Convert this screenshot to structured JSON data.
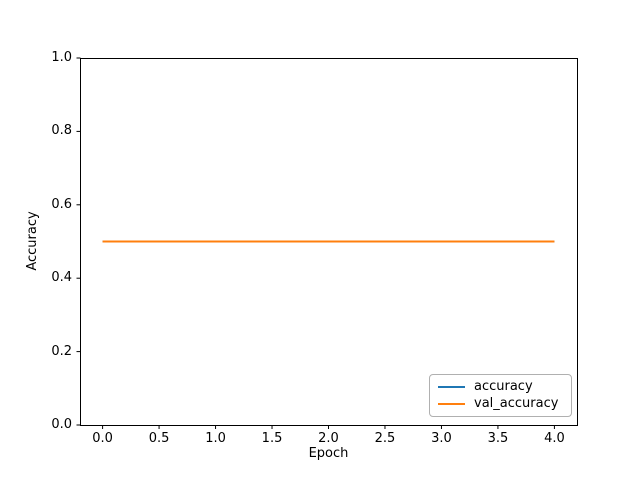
{
  "figure": {
    "background": "#ffffff",
    "text_color": "#000000",
    "spine_color": "#000000"
  },
  "chart_data": {
    "type": "line",
    "title": "",
    "xlabel": "Epoch",
    "ylabel": "Accuracy",
    "x": [
      0,
      1,
      2,
      3,
      4
    ],
    "series": [
      {
        "name": "accuracy",
        "color": "#1f77b4",
        "values": [
          0.5,
          0.5,
          0.5,
          0.5,
          0.5
        ]
      },
      {
        "name": "val_accuracy",
        "color": "#ff7f0e",
        "values": [
          0.5,
          0.5,
          0.5,
          0.5,
          0.5
        ]
      }
    ],
    "xlim": [
      -0.2,
      4.2
    ],
    "ylim": [
      0.0,
      1.0
    ],
    "xtick_values": [
      0,
      0.5,
      1,
      1.5,
      2,
      2.5,
      3,
      3.5,
      4
    ],
    "xtick_labels": [
      "0.0",
      "0.5",
      "1.0",
      "1.5",
      "2.0",
      "2.5",
      "3.0",
      "3.5",
      "4.0"
    ],
    "ytick_values": [
      0,
      0.2,
      0.4,
      0.6,
      0.8,
      1.0
    ],
    "ytick_labels": [
      "0.0",
      "0.2",
      "0.4",
      "0.6",
      "0.8",
      "1.0"
    ],
    "grid": false,
    "legend": {
      "position": "lower right",
      "entries": [
        "accuracy",
        "val_accuracy"
      ]
    }
  }
}
